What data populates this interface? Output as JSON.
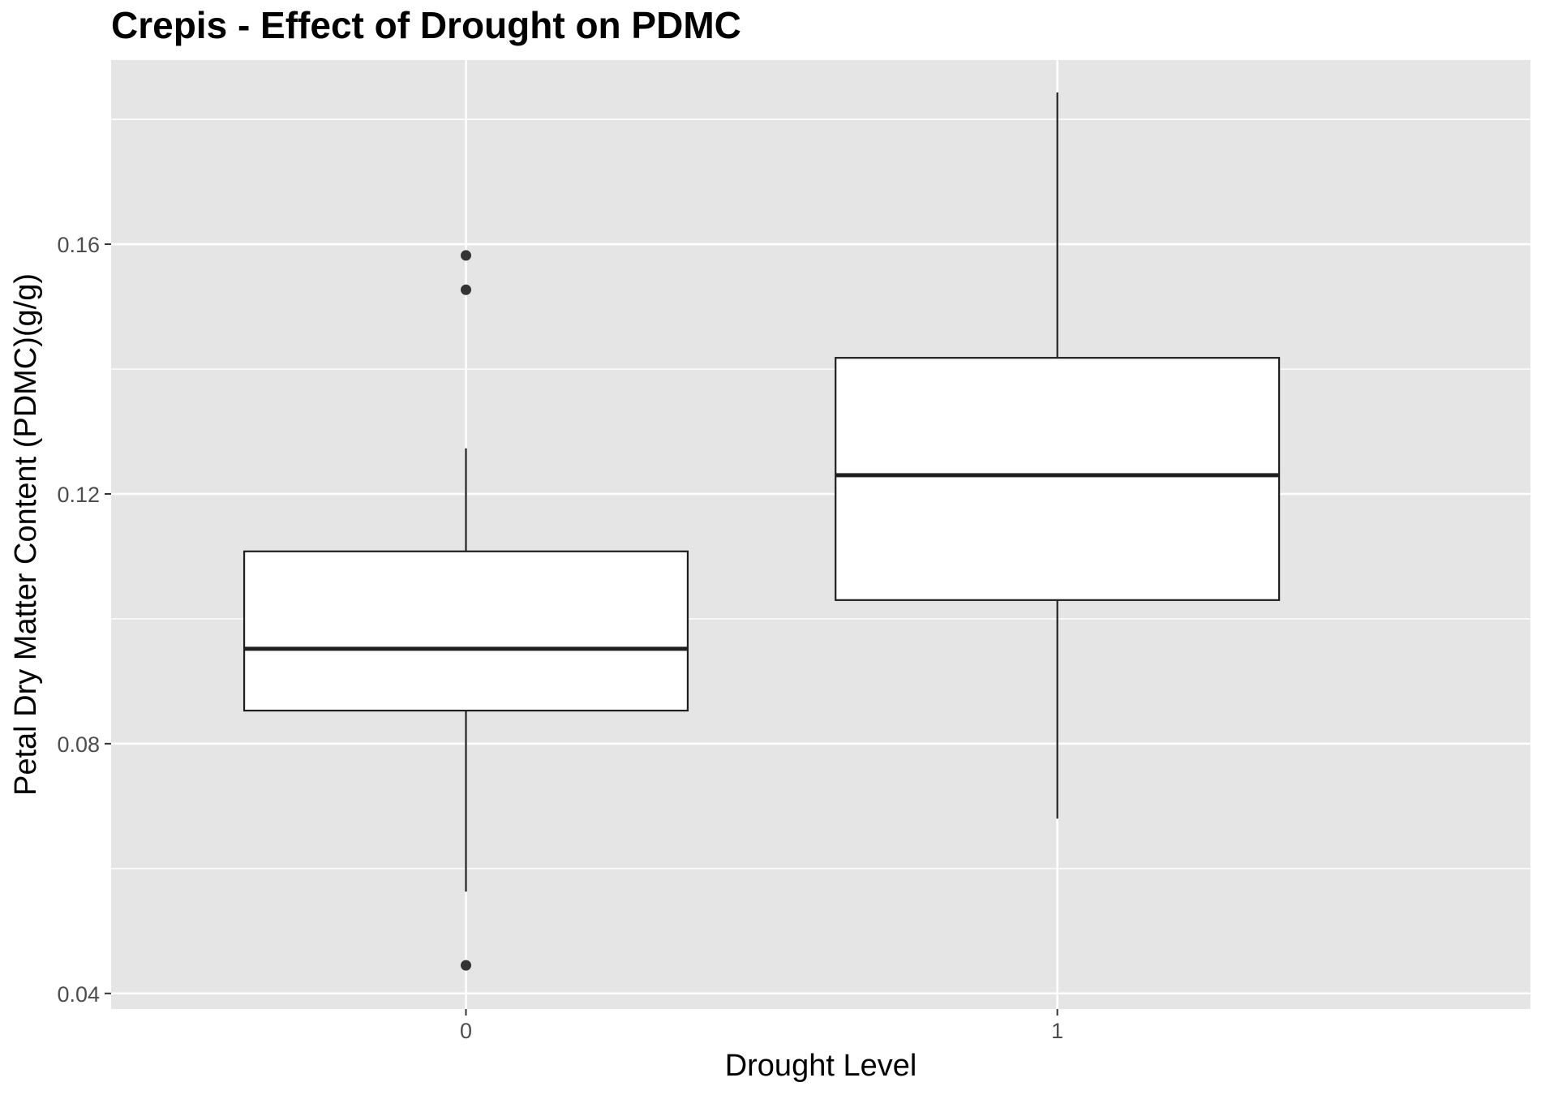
{
  "chart_data": {
    "type": "box",
    "title": "Crepis - Effect of Drought on PDMC",
    "xlabel": "Drought Level",
    "ylabel": "Petal Dry Matter Content (PDMC)(g/g)",
    "categories": [
      "0",
      "1"
    ],
    "ylim": [
      0.0375,
      0.1895
    ],
    "yticks": [
      0.04,
      0.08,
      0.12,
      0.16
    ],
    "ytick_labels": [
      "0.04",
      "0.08",
      "0.12",
      "0.16"
    ],
    "grid": true,
    "legend": "none",
    "boxes": [
      {
        "category": "0",
        "lower_whisker": 0.0563,
        "q1": 0.0853,
        "median": 0.0952,
        "q3": 0.1108,
        "upper_whisker": 0.1273,
        "outliers": [
          0.0445,
          0.1527,
          0.1582
        ]
      },
      {
        "category": "1",
        "lower_whisker": 0.068,
        "q1": 0.103,
        "median": 0.123,
        "q3": 0.1418,
        "upper_whisker": 0.1843,
        "outliers": []
      }
    ],
    "colors": {
      "panel_background": "#e5e5e5",
      "grid_line": "#ffffff",
      "box_fill": "#ffffff",
      "box_stroke": "#1f1f1f",
      "outlier": "#333333",
      "tick_label": "#4d4d4d",
      "tick_mark": "#333333"
    }
  }
}
